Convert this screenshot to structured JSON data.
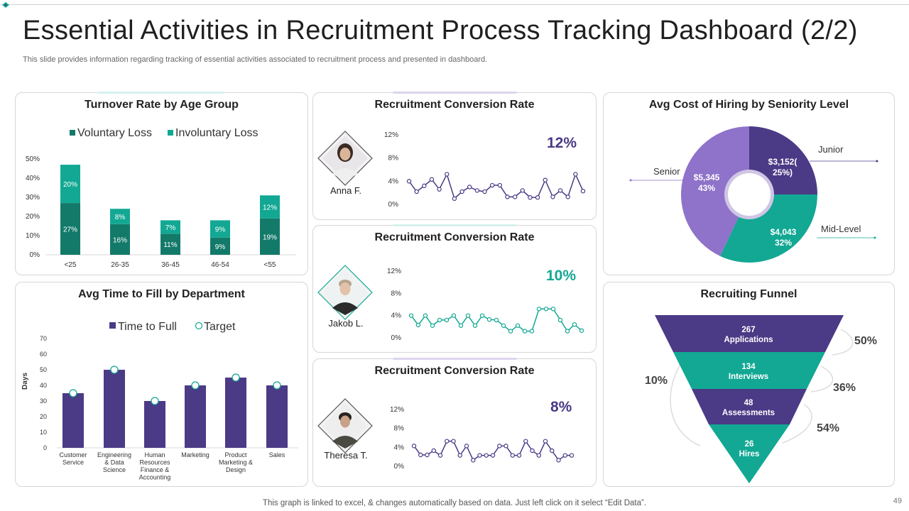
{
  "header": {
    "title": "Essential Activities in Recruitment Process Tracking Dashboard (2/2)",
    "subtitle": "This slide provides information regarding tracking of essential activities associated to recruitment process and presented in dashboard."
  },
  "turnover": {
    "title": "Turnover Rate by Age Group",
    "legend": [
      "Voluntary Loss",
      "Involuntary Loss"
    ]
  },
  "time_to_fill": {
    "title": "Avg Time to Fill by Department",
    "legend": [
      "Time to Full",
      "Target"
    ],
    "ylabel": "Days"
  },
  "conversion": [
    {
      "title": "Recruitment Conversion Rate",
      "name": "Anna F.",
      "rate": "12%"
    },
    {
      "title": "Recruitment Conversion Rate",
      "name": "Jakob L.",
      "rate": "10%"
    },
    {
      "title": "Recruitment Conversion Rate",
      "name": "Theresa T.",
      "rate": "8%"
    }
  ],
  "cost": {
    "title": "Avg Cost of Hiring by Seniority Level",
    "labels": [
      "Junior",
      "Mid-Level",
      "Senior"
    ]
  },
  "funnel": {
    "title": "Recruiting Funnel",
    "stages": [
      {
        "count": "267",
        "label": "Applications"
      },
      {
        "count": "134",
        "label": "Interviews"
      },
      {
        "count": "48",
        "label": "Assessments"
      },
      {
        "count": "26",
        "label": "Hires"
      }
    ],
    "pct_right": [
      "50%",
      "36%",
      "54%"
    ],
    "pct_left": "10%"
  },
  "footer": "This graph is linked to excel, & changes automatically based on data. Just left click on it select “Edit Data”.",
  "page_number": "49",
  "colors": {
    "purple": "#4b3a86",
    "teal": "#12a893",
    "dark_teal": "#137a6a",
    "light_purple": "#8f72c9"
  },
  "chart_data": [
    {
      "type": "bar",
      "title": "Turnover Rate by Age Group",
      "categories": [
        "<25",
        "26-35",
        "36-45",
        "46-54",
        "<55"
      ],
      "series": [
        {
          "name": "Voluntary Loss",
          "values": [
            27,
            16,
            11,
            9,
            19
          ],
          "labels": [
            "27%",
            "16%",
            "11%",
            "9%",
            "19%"
          ]
        },
        {
          "name": "Involuntary Loss",
          "values": [
            20,
            8,
            7,
            9,
            12
          ],
          "labels": [
            "20%",
            "8%",
            "7%",
            "9%",
            "12%"
          ]
        }
      ],
      "yticks": [
        "0%",
        "10%",
        "20%",
        "30%",
        "40%",
        "50%"
      ],
      "ylim": [
        0,
        50
      ]
    },
    {
      "type": "bar",
      "title": "Avg Time to Fill by Department",
      "categories": [
        "Customer Service",
        "Engineering & Data Science",
        "Human Resources Finance & Accounting",
        "Marketing",
        "Product Marketing & Design",
        "Sales"
      ],
      "series": [
        {
          "name": "Time to Full",
          "values": [
            35,
            50,
            30,
            40,
            45,
            40
          ]
        },
        {
          "name": "Target",
          "values": [
            35,
            50,
            30,
            40,
            45,
            40
          ]
        }
      ],
      "yticks": [
        "0",
        "10",
        "20",
        "30",
        "40",
        "50",
        "60",
        "70"
      ],
      "ylim": [
        0,
        70
      ],
      "ylabel": "Days"
    },
    {
      "type": "line",
      "title": "Recruitment Conversion Rate - Anna F.",
      "yticks": [
        "0%",
        "4%",
        "8%",
        "12%"
      ],
      "ylim": [
        0,
        12
      ],
      "values": [
        4,
        2.2,
        3.2,
        4.3,
        2.6,
        5.2,
        1,
        2.2,
        3,
        2.4,
        2.2,
        3.3,
        3.3,
        1.3,
        1.3,
        2.4,
        1.2,
        1.2,
        4.2,
        1.3,
        2.4,
        1.3,
        5.2,
        2.3
      ]
    },
    {
      "type": "line",
      "title": "Recruitment Conversion Rate - Jakob L.",
      "yticks": [
        "0%",
        "4%",
        "8%",
        "12%"
      ],
      "ylim": [
        0,
        12
      ],
      "values": [
        4,
        2.3,
        4,
        2.2,
        3.2,
        3.2,
        4,
        2.2,
        4,
        2.2,
        4,
        3.3,
        3.2,
        2.2,
        1.2,
        2.2,
        1.2,
        1.2,
        5.2,
        5.2,
        5.2,
        3.2,
        1.2,
        2.4,
        1.3
      ]
    },
    {
      "type": "line",
      "title": "Recruitment Conversion Rate - Theresa T.",
      "yticks": [
        "0%",
        "4%",
        "8%",
        "12%"
      ],
      "ylim": [
        0,
        12
      ],
      "values": [
        4.3,
        2.4,
        2.4,
        3.3,
        2.3,
        5.3,
        5.3,
        2.3,
        4.3,
        1.3,
        2.3,
        2.3,
        2.3,
        4.3,
        4.3,
        2.3,
        2.3,
        5.3,
        3.3,
        2.3,
        5.3,
        3.3,
        1.3,
        2.3,
        2.3
      ]
    },
    {
      "type": "pie",
      "title": "Avg Cost of Hiring by Seniority Level",
      "slices": [
        {
          "name": "Junior",
          "value": 3152,
          "pct": 25,
          "label_value": "$3,152(",
          "label_pct": "25%)"
        },
        {
          "name": "Mid-Level",
          "value": 4043,
          "pct": 32,
          "label_value": "$4,043",
          "label_pct": "32%"
        },
        {
          "name": "Senior",
          "value": 5345,
          "pct": 43,
          "label_value": "$5,345",
          "label_pct": "43%"
        }
      ]
    }
  ]
}
